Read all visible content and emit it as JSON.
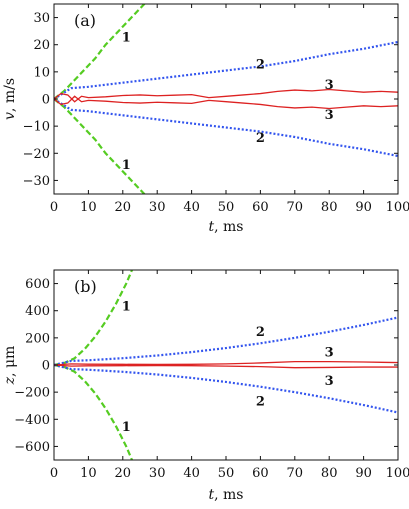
{
  "colors": {
    "curve1": "#55cc22",
    "curve2": "#3355ee",
    "curve3": "#dd2222",
    "axis": "#111111"
  },
  "chart_data": [
    {
      "type": "line",
      "panel_label": "(a)",
      "xlabel": "t",
      "xunit": ", ms",
      "ylabel": "v",
      "yunit": ", m/s",
      "xlim": [
        0,
        100
      ],
      "ylim": [
        -35,
        35
      ],
      "xticks": [
        0,
        10,
        20,
        30,
        40,
        50,
        60,
        70,
        80,
        90,
        100
      ],
      "yticks": [
        -30,
        -20,
        -10,
        0,
        10,
        20,
        30
      ],
      "grid": false,
      "series": [
        {
          "name": "1",
          "style": "dashed",
          "color": "curve1",
          "x": [
            0,
            3,
            6,
            9,
            12,
            15,
            18,
            21,
            24,
            27
          ],
          "y": [
            0,
            3,
            7,
            11,
            15,
            20,
            24,
            28,
            32,
            36
          ]
        },
        {
          "name": "1",
          "style": "dashed",
          "color": "curve1",
          "x": [
            0,
            3,
            6,
            9,
            12,
            15,
            18,
            21,
            24,
            27
          ],
          "y": [
            0,
            -3,
            -7,
            -11,
            -15,
            -20,
            -24,
            -28,
            -32,
            -36
          ]
        },
        {
          "name": "2",
          "style": "dotted",
          "color": "curve2",
          "x": [
            0,
            5,
            10,
            20,
            30,
            40,
            50,
            60,
            70,
            80,
            90,
            100
          ],
          "y": [
            0,
            4,
            4.5,
            6,
            7.5,
            9,
            10.5,
            12,
            14,
            16.5,
            18.5,
            21
          ]
        },
        {
          "name": "2",
          "style": "dotted",
          "color": "curve2",
          "x": [
            0,
            5,
            10,
            20,
            30,
            40,
            50,
            60,
            70,
            80,
            90,
            100
          ],
          "y": [
            0,
            -4,
            -4.5,
            -6,
            -7.5,
            -9,
            -10.5,
            -12,
            -14,
            -16.5,
            -18.5,
            -21
          ]
        },
        {
          "name": "3",
          "style": "solid",
          "color": "curve3",
          "x": [
            0,
            2,
            4,
            6,
            8,
            10,
            15,
            20,
            25,
            30,
            35,
            40,
            45,
            50,
            55,
            60,
            65,
            70,
            75,
            80,
            85,
            90,
            95,
            100
          ],
          "y": [
            0,
            2,
            1.5,
            -1,
            1,
            0.5,
            0.8,
            1.3,
            1.5,
            1.2,
            1.4,
            1.6,
            0.5,
            1.0,
            1.5,
            2.0,
            2.8,
            3.3,
            3.0,
            3.5,
            3.0,
            2.5,
            2.8,
            2.5
          ]
        },
        {
          "name": "3",
          "style": "solid",
          "color": "curve3",
          "x": [
            0,
            2,
            4,
            6,
            8,
            10,
            15,
            20,
            25,
            30,
            35,
            40,
            45,
            50,
            55,
            60,
            65,
            70,
            75,
            80,
            85,
            90,
            95,
            100
          ],
          "y": [
            0,
            -2,
            -1.5,
            1,
            -1,
            -0.5,
            -0.8,
            -1.3,
            -1.5,
            -1.2,
            -1.4,
            -1.6,
            -0.5,
            -1.0,
            -1.5,
            -2.0,
            -2.8,
            -3.3,
            -3.0,
            -3.5,
            -3.0,
            -2.5,
            -2.8,
            -2.5
          ]
        }
      ],
      "annotations": [
        {
          "text": "1",
          "x": 21,
          "y": 23
        },
        {
          "text": "1",
          "x": 21,
          "y": -24
        },
        {
          "text": "2",
          "x": 60,
          "y": 13
        },
        {
          "text": "2",
          "x": 60,
          "y": -14
        },
        {
          "text": "3",
          "x": 80,
          "y": 5.5
        },
        {
          "text": "3",
          "x": 80,
          "y": -5.5
        }
      ]
    },
    {
      "type": "line",
      "panel_label": "(b)",
      "xlabel": "t",
      "xunit": ", ms",
      "ylabel": "z",
      "yunit": ", μm",
      "xlim": [
        0,
        100
      ],
      "ylim": [
        -700,
        700
      ],
      "xticks": [
        0,
        10,
        20,
        30,
        40,
        50,
        60,
        70,
        80,
        90,
        100
      ],
      "yticks": [
        -600,
        -400,
        -200,
        0,
        200,
        400,
        600
      ],
      "grid": false,
      "series": [
        {
          "name": "1",
          "style": "dashed",
          "color": "curve1",
          "x": [
            0,
            3,
            6,
            9,
            12,
            15,
            18,
            21,
            23
          ],
          "y": [
            0,
            15,
            50,
            120,
            210,
            320,
            450,
            600,
            720
          ]
        },
        {
          "name": "1",
          "style": "dashed",
          "color": "curve1",
          "x": [
            0,
            3,
            6,
            9,
            12,
            15,
            18,
            21,
            23
          ],
          "y": [
            0,
            -15,
            -50,
            -120,
            -210,
            -320,
            -450,
            -600,
            -720
          ]
        },
        {
          "name": "2",
          "style": "dotted",
          "color": "curve2",
          "x": [
            0,
            5,
            10,
            20,
            30,
            40,
            50,
            60,
            70,
            80,
            90,
            100
          ],
          "y": [
            0,
            30,
            35,
            50,
            70,
            95,
            125,
            160,
            200,
            245,
            295,
            350
          ]
        },
        {
          "name": "2",
          "style": "dotted",
          "color": "curve2",
          "x": [
            0,
            5,
            10,
            20,
            30,
            40,
            50,
            60,
            70,
            80,
            90,
            100
          ],
          "y": [
            0,
            -30,
            -35,
            -50,
            -70,
            -95,
            -125,
            -160,
            -200,
            -245,
            -295,
            -350
          ]
        },
        {
          "name": "3",
          "style": "solid",
          "color": "curve3",
          "x": [
            0,
            5,
            10,
            20,
            30,
            40,
            50,
            60,
            70,
            80,
            90,
            100
          ],
          "y": [
            0,
            8,
            6,
            5,
            4,
            5,
            8,
            15,
            25,
            25,
            22,
            18
          ]
        },
        {
          "name": "3",
          "style": "solid",
          "color": "curve3",
          "x": [
            0,
            5,
            10,
            20,
            30,
            40,
            50,
            60,
            70,
            80,
            90,
            100
          ],
          "y": [
            0,
            -8,
            -6,
            -5,
            -4,
            -5,
            -8,
            -12,
            -20,
            -18,
            -15,
            -15
          ]
        }
      ],
      "annotations": [
        {
          "text": "1",
          "x": 21,
          "y": 440
        },
        {
          "text": "1",
          "x": 21,
          "y": -450
        },
        {
          "text": "2",
          "x": 60,
          "y": 250
        },
        {
          "text": "2",
          "x": 60,
          "y": -260
        },
        {
          "text": "3",
          "x": 80,
          "y": 100
        },
        {
          "text": "3",
          "x": 80,
          "y": -110
        }
      ]
    }
  ]
}
